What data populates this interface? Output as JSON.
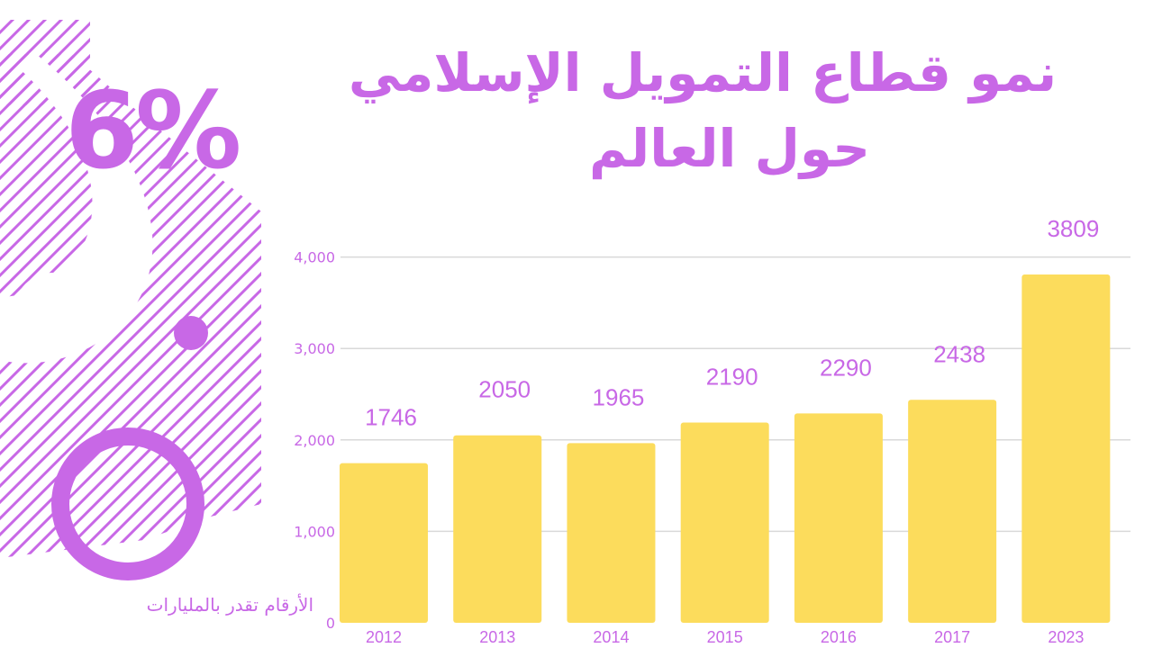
{
  "title": {
    "line1": "نمو قطاع التمويل الإسلامي",
    "line2": "حول العالم"
  },
  "highlight": {
    "growth": "6%"
  },
  "footnote": "الأرقام تقدر بالمليارات",
  "colors": {
    "accent": "#c868e6",
    "bar": "#fcdc5c",
    "grid": "#d9d9d9"
  },
  "chart_data": {
    "type": "bar",
    "categories": [
      "2012",
      "2013",
      "2014",
      "2015",
      "2016",
      "2017",
      "2023"
    ],
    "values": [
      1746,
      2050,
      1965,
      2190,
      2290,
      2438,
      3809
    ],
    "data_labels": [
      "1746",
      "2050",
      "1965",
      "2190",
      "2290",
      "2438",
      "3809"
    ],
    "ylim": [
      0,
      4000
    ],
    "yticks": [
      0,
      1000,
      2000,
      3000,
      4000
    ],
    "ytick_labels": [
      "0",
      "1,000",
      "2,000",
      "3,000",
      "4,000"
    ],
    "grid": true
  }
}
